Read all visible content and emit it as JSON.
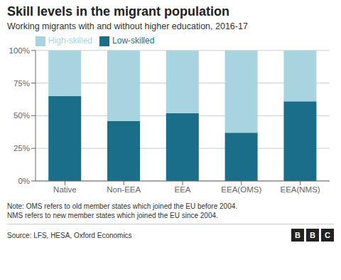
{
  "chart_data": {
    "type": "bar",
    "title": "Skill levels in the migrant population",
    "subtitle": "Working migrants with and without higher education, 2016-17",
    "categories": [
      "Native",
      "Non-EEA",
      "EEA",
      "EEA(OMS)",
      "EEA(NMS)"
    ],
    "series": [
      {
        "name": "Low-skilled",
        "color": "#1a6e8a",
        "values": [
          65,
          46,
          52,
          37,
          61
        ]
      },
      {
        "name": "High-skilled",
        "color": "#a8d4e0",
        "values": [
          35,
          54,
          48,
          63,
          39
        ]
      }
    ],
    "stacked": true,
    "ylim": [
      0,
      100
    ],
    "yticks": [
      {
        "value": 0,
        "label": "0%"
      },
      {
        "value": 25,
        "label": "25%"
      },
      {
        "value": 50,
        "label": "50%"
      },
      {
        "value": 75,
        "label": "75%"
      },
      {
        "value": 100,
        "label": "100%"
      }
    ],
    "grid": true,
    "legend": "upper left",
    "annotations": [
      "Note: OMS refers to old member states which joined the EU before 2004.",
      "NMS refers to new member states which joined the EU since 2004.",
      "Source: LFS, HESA, Oxford Economics",
      "BBC"
    ]
  }
}
